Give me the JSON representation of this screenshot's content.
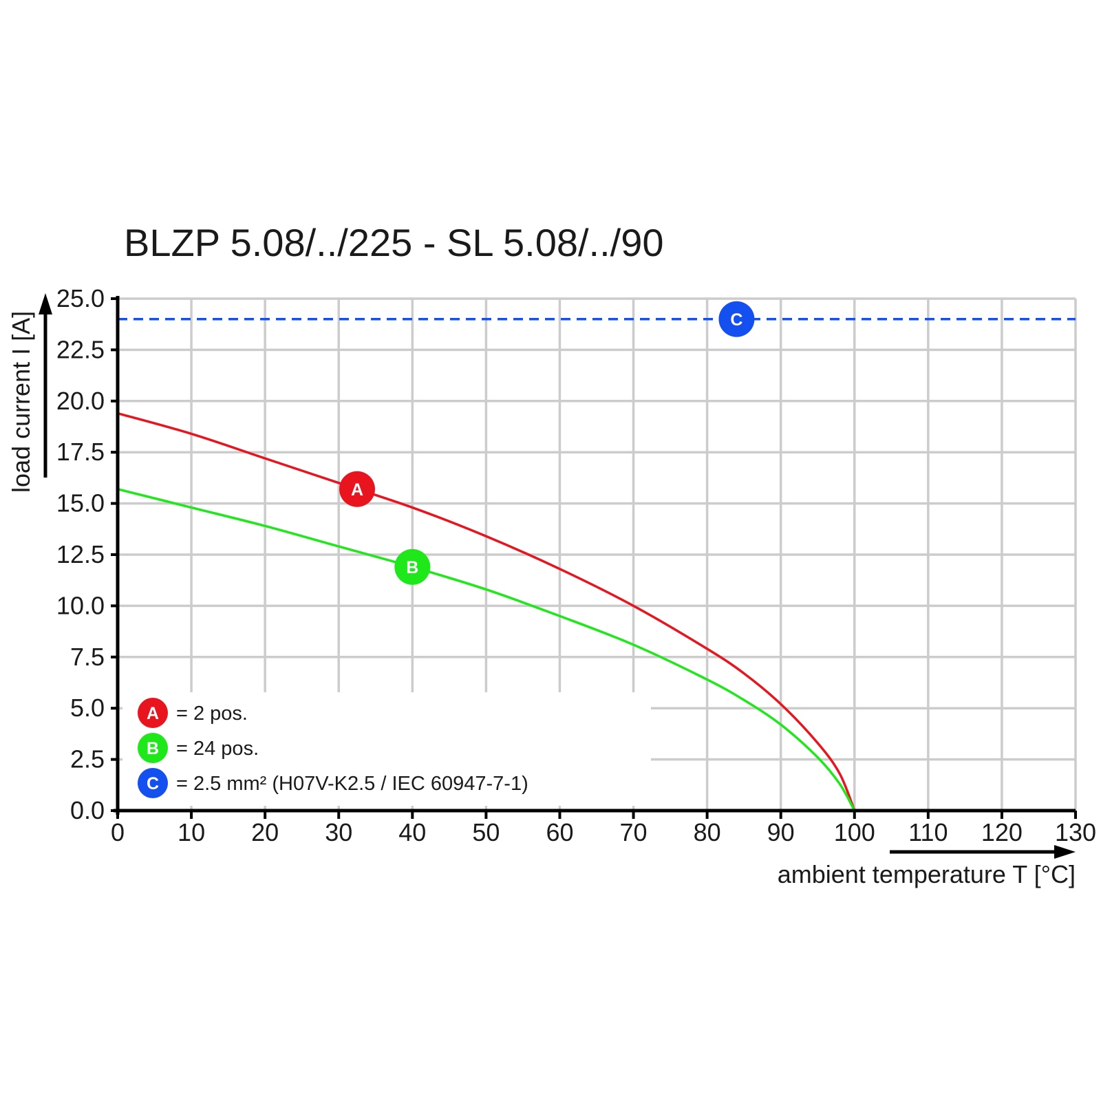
{
  "chart_data": {
    "type": "line",
    "title": "BLZP 5.08/../225 - SL 5.08/../90",
    "xlabel": "ambient temperature T [°C]",
    "ylabel": "load current I [A]",
    "xlim": [
      0,
      130
    ],
    "ylim": [
      0,
      25
    ],
    "x_ticks": [
      "0",
      "10",
      "20",
      "30",
      "40",
      "50",
      "60",
      "70",
      "80",
      "90",
      "100",
      "110",
      "120",
      "130"
    ],
    "y_ticks": [
      "0.0",
      "2.5",
      "5.0",
      "7.5",
      "10.0",
      "12.5",
      "15.0",
      "17.5",
      "20.0",
      "22.5",
      "25.0"
    ],
    "grid": true,
    "legend_position": "bottom-left",
    "series": [
      {
        "marker": "A",
        "color": "#e8141e",
        "style": "solid",
        "points": [
          [
            0,
            19.4
          ],
          [
            10,
            18.4
          ],
          [
            20,
            17.2
          ],
          [
            30,
            16.0
          ],
          [
            40,
            14.8
          ],
          [
            50,
            13.4
          ],
          [
            60,
            11.8
          ],
          [
            70,
            10.0
          ],
          [
            80,
            7.9
          ],
          [
            85,
            6.7
          ],
          [
            90,
            5.2
          ],
          [
            95,
            3.3
          ],
          [
            98,
            1.8
          ],
          [
            100,
            0.0
          ]
        ],
        "marker_at": [
          32.5,
          15.7
        ]
      },
      {
        "marker": "B",
        "color": "#1fe81a",
        "style": "solid",
        "points": [
          [
            0,
            15.7
          ],
          [
            10,
            14.8
          ],
          [
            20,
            13.9
          ],
          [
            30,
            12.9
          ],
          [
            40,
            11.9
          ],
          [
            50,
            10.8
          ],
          [
            60,
            9.5
          ],
          [
            70,
            8.1
          ],
          [
            80,
            6.4
          ],
          [
            85,
            5.4
          ],
          [
            90,
            4.2
          ],
          [
            95,
            2.6
          ],
          [
            98,
            1.3
          ],
          [
            100,
            0.0
          ]
        ],
        "marker_at": [
          40,
          11.9
        ]
      },
      {
        "marker": "C",
        "color": "#1450f0",
        "style": "dashed",
        "points": [
          [
            0,
            24.0
          ],
          [
            130,
            24.0
          ]
        ],
        "marker_at": [
          84,
          24.0
        ]
      }
    ],
    "legend": [
      {
        "marker": "A",
        "color": "#e8141e",
        "label": "= 2 pos."
      },
      {
        "marker": "B",
        "color": "#1fe81a",
        "label": "= 24 pos."
      },
      {
        "marker": "C",
        "color": "#1450f0",
        "label": "= 2.5 mm² (H07V-K2.5 / IEC 60947-7-1)"
      }
    ]
  }
}
